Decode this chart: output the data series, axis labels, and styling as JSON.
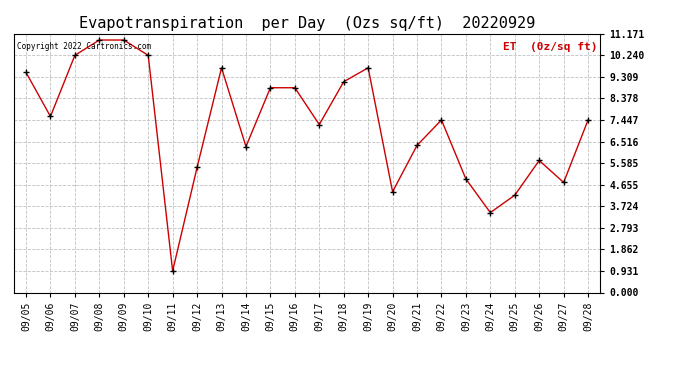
{
  "title": "Evapotranspiration  per Day  (Ozs sq/ft)  20220929",
  "legend_label": "ET  (0z/sq ft)",
  "copyright_text": "Copyright 2022 Cartronics.com",
  "dates": [
    "09/05",
    "09/06",
    "09/07",
    "09/08",
    "09/09",
    "09/10",
    "09/11",
    "09/12",
    "09/13",
    "09/14",
    "09/15",
    "09/16",
    "09/17",
    "09/18",
    "09/19",
    "09/20",
    "09/21",
    "09/22",
    "09/23",
    "09/24",
    "09/25",
    "09/26",
    "09/27",
    "09/28"
  ],
  "values": [
    9.5,
    7.6,
    10.24,
    10.9,
    10.9,
    10.24,
    0.93,
    5.4,
    9.7,
    6.3,
    8.84,
    8.84,
    7.25,
    9.1,
    9.7,
    4.35,
    6.35,
    7.45,
    4.9,
    3.45,
    4.2,
    5.7,
    4.75,
    7.45
  ],
  "yticks": [
    0.0,
    0.931,
    1.862,
    2.793,
    3.724,
    4.655,
    5.585,
    6.516,
    7.447,
    8.378,
    9.309,
    10.24,
    11.171
  ],
  "ylim": [
    0.0,
    11.171
  ],
  "line_color": "#cc0000",
  "marker_color": "#000000",
  "grid_color": "#c0c0c0",
  "background_color": "#ffffff",
  "title_fontsize": 11,
  "tick_fontsize": 7,
  "legend_color": "#cc0000",
  "copyright_fontsize": 5.5,
  "legend_fontsize": 8
}
